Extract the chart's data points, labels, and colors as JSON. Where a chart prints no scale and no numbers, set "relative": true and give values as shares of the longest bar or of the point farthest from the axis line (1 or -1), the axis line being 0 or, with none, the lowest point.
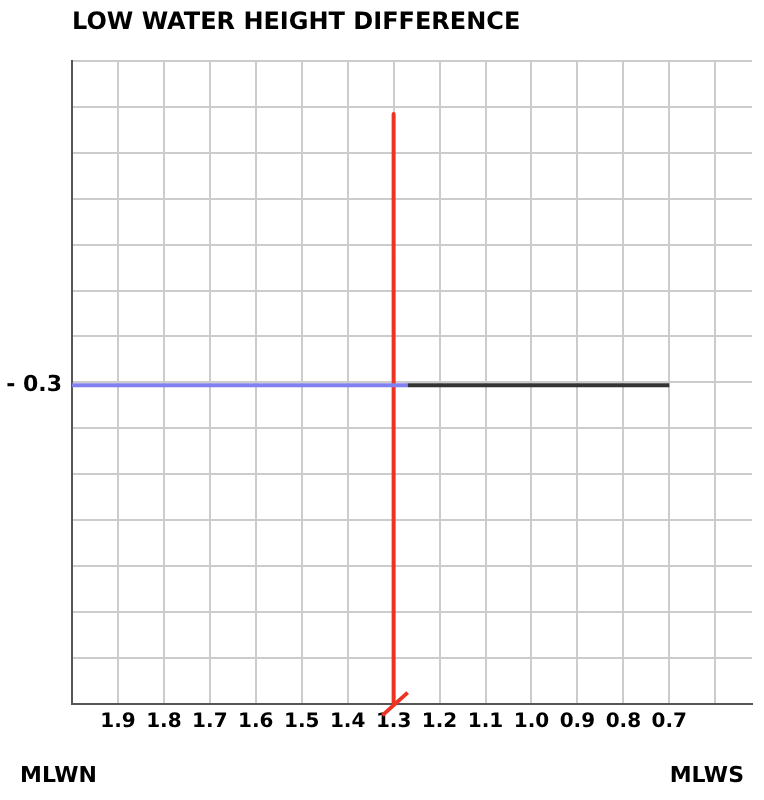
{
  "chart_data": {
    "type": "line",
    "title": "LOW WATER HEIGHT DIFFERENCE",
    "xlim": [
      2.0,
      0.52
    ],
    "xticks": [
      1.9,
      1.8,
      1.7,
      1.6,
      1.5,
      1.4,
      1.3,
      1.2,
      1.1,
      {
        "value": 1.0,
        "label": "1.0"
      },
      0.9,
      0.8,
      0.7,
      {
        "value": 0.6,
        "label": null
      }
    ],
    "relative": true,
    "grid": true,
    "legend": false,
    "line_style": "solid",
    "series": [
      {
        "color": "#8080f0",
        "x": [
          2.0,
          1.27
        ],
        "values": [
          0.54,
          0.54
        ]
      },
      {
        "color": "#333333",
        "x": [
          1.27,
          0.7
        ],
        "values": [
          0.54,
          0.54
        ]
      },
      {
        "color": "#ee3322",
        "x": [
          1.3,
          1.3
        ],
        "values": [
          1,
          0
        ]
      }
    ],
    "annotations": [
      "- 0.3",
      "MLWN",
      "MLWS"
    ]
  }
}
